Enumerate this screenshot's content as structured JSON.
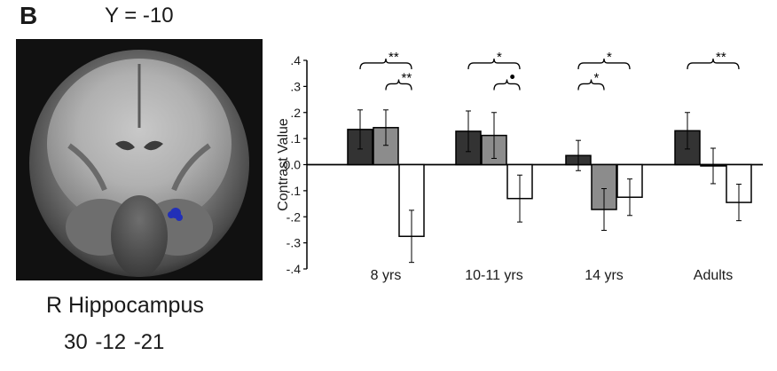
{
  "panel_letter": "B",
  "slice_label": "Y = -10",
  "region": {
    "name": "R Hippocampus",
    "coords": "30  -12 -21",
    "marker_color": "#2230b8"
  },
  "colors": {
    "dark_bar": "#333333",
    "gray_bar": "#8c8c8c",
    "white_bar": "#ffffff",
    "outline": "#000000"
  },
  "chart_data": {
    "type": "bar",
    "title": "",
    "xlabel": "",
    "ylabel": "Contrast Value",
    "ylim": [
      -0.4,
      0.4
    ],
    "yticks": [
      0.4,
      0.3,
      0.2,
      0.1,
      0.0,
      -0.1,
      -0.2,
      -0.3,
      -0.4
    ],
    "ytick_labels": [
      ".4",
      ".3",
      ".2",
      ".1",
      "0.0",
      "-.1",
      "-.2",
      "-.3",
      "-.4"
    ],
    "categories": [
      "8 yrs",
      "10-11 yrs",
      "14 yrs",
      "Adults"
    ],
    "series": [
      {
        "fill": "#333333",
        "values": [
          0.135,
          0.128,
          0.035,
          0.13
        ],
        "errors": [
          0.075,
          0.078,
          0.058,
          0.07
        ]
      },
      {
        "fill": "#8c8c8c",
        "values": [
          0.142,
          0.112,
          -0.172,
          -0.005
        ],
        "errors": [
          0.068,
          0.088,
          0.08,
          0.068
        ]
      },
      {
        "fill": "#ffffff",
        "values": [
          -0.275,
          -0.13,
          -0.125,
          -0.145
        ],
        "errors": [
          0.1,
          0.09,
          0.07,
          0.07
        ]
      }
    ],
    "annotations": [
      {
        "group": 0,
        "from": 0,
        "to": 2,
        "level": 0.39,
        "label": "**"
      },
      {
        "group": 0,
        "from": 1,
        "to": 2,
        "level": 0.31,
        "label": "**"
      },
      {
        "group": 1,
        "from": 0,
        "to": 2,
        "level": 0.39,
        "label": "*"
      },
      {
        "group": 1,
        "from": 1,
        "to": 2,
        "level": 0.31,
        "label": "•"
      },
      {
        "group": 2,
        "from": 0,
        "to": 2,
        "level": 0.39,
        "label": "*"
      },
      {
        "group": 2,
        "from": 0,
        "to": 1,
        "level": 0.31,
        "label": "*"
      },
      {
        "group": 3,
        "from": 0,
        "to": 2,
        "level": 0.39,
        "label": "**"
      }
    ]
  }
}
